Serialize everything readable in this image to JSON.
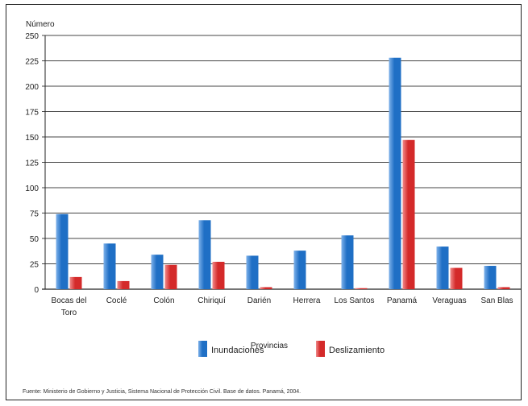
{
  "chart_data": {
    "type": "bar",
    "ylabel": "Número",
    "xlabel": "Provincias",
    "ylim": [
      0,
      250
    ],
    "yticks": [
      0,
      25,
      50,
      75,
      100,
      125,
      150,
      175,
      200,
      225,
      250
    ],
    "categories": [
      [
        "Bocas del",
        "Toro"
      ],
      [
        "Coclé"
      ],
      [
        "Colón"
      ],
      [
        "Chiriquí"
      ],
      [
        "Darién"
      ],
      [
        "Herrera"
      ],
      [
        "Los Santos"
      ],
      [
        "Panamá"
      ],
      [
        "Veraguas"
      ],
      [
        "San Blas"
      ]
    ],
    "series": [
      {
        "name": "Inundaciones",
        "color": "#1f6fc5",
        "values": [
          74,
          45,
          34,
          68,
          33,
          38,
          53,
          228,
          42,
          23
        ]
      },
      {
        "name": "Deslizamiento",
        "color": "#d42a2a",
        "values": [
          12,
          8,
          24,
          27,
          2,
          0,
          1,
          147,
          21,
          2
        ]
      }
    ],
    "grid": true,
    "legend_position": "bottom"
  },
  "source_note": "Fuente: Ministerio de Gobierno y Justicia, Sistema Nacional de Protección Civil. Base de datos. Panamá, 2004."
}
